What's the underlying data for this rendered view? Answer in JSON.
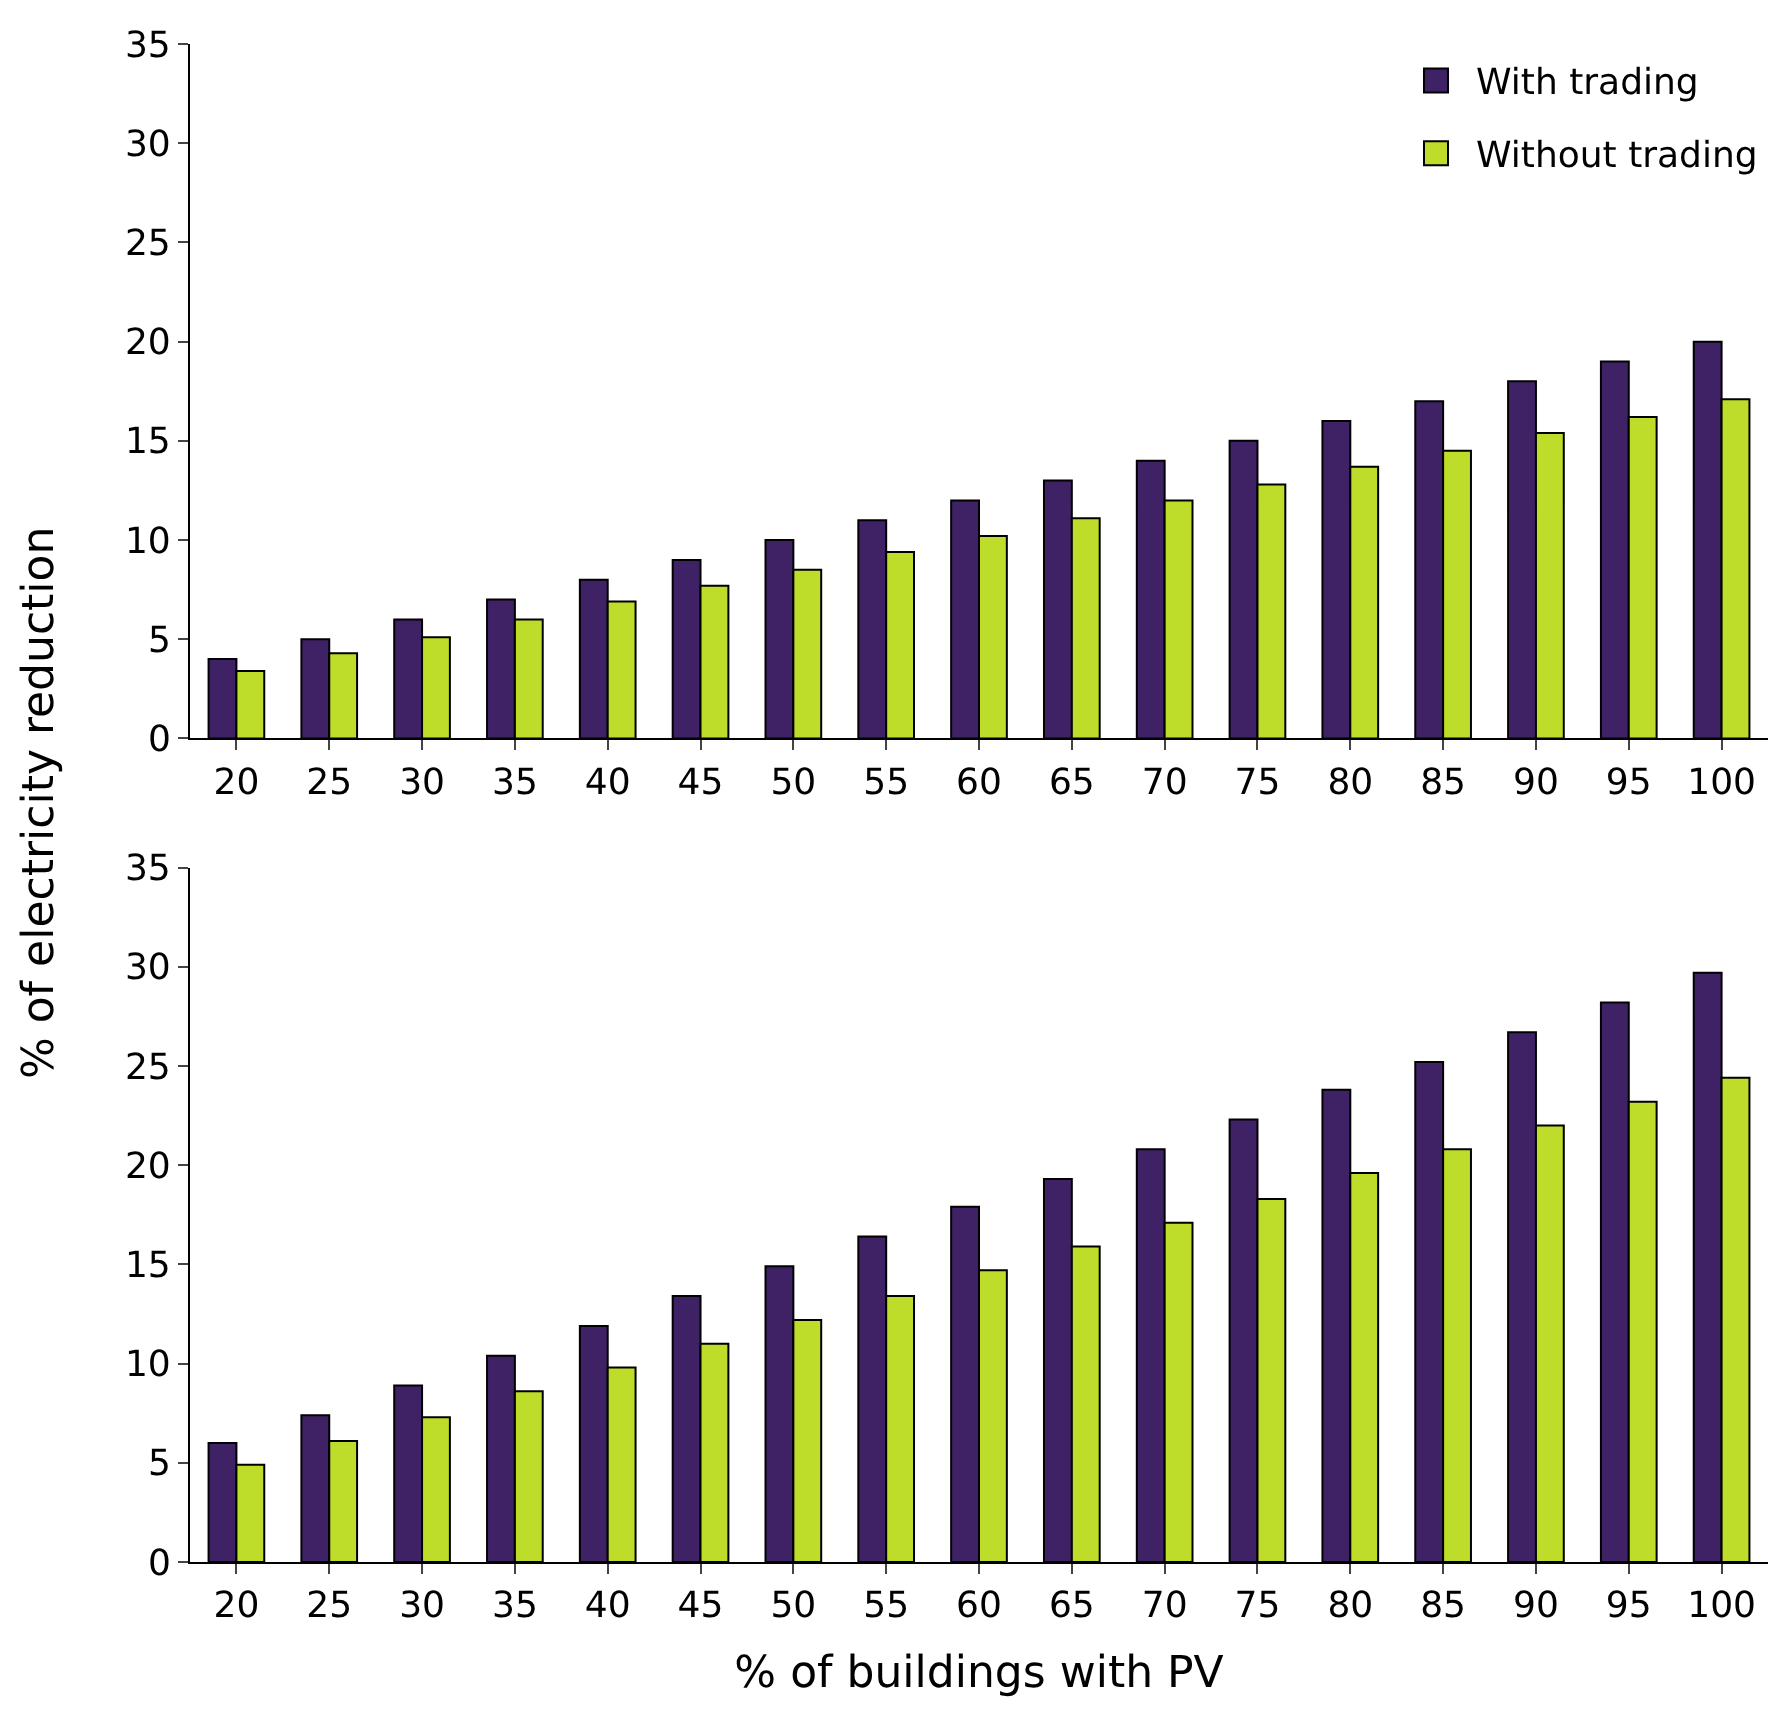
{
  "chart_data": [
    {
      "type": "bar",
      "ylabel": "% of electricity reduction",
      "categories": [
        "20",
        "25",
        "30",
        "35",
        "40",
        "45",
        "50",
        "55",
        "60",
        "65",
        "70",
        "75",
        "80",
        "85",
        "90",
        "95",
        "100"
      ],
      "series": [
        {
          "name": "With trading",
          "color": "#3f2166",
          "values": [
            4,
            5,
            6,
            7,
            8,
            9,
            10,
            11,
            12,
            13,
            14,
            15,
            16,
            17,
            18,
            19,
            20
          ]
        },
        {
          "name": "Without trading",
          "color": "#bedd2b",
          "values": [
            3.4,
            4.3,
            5.1,
            6.0,
            6.9,
            7.7,
            8.5,
            9.4,
            10.2,
            11.1,
            12.0,
            12.8,
            13.7,
            14.5,
            15.4,
            16.2,
            17.1
          ]
        }
      ],
      "ylim": [
        0,
        35
      ],
      "yticks": [
        0,
        5,
        10,
        15,
        20,
        25,
        30,
        35
      ],
      "legend": "top right"
    },
    {
      "type": "bar",
      "xlabel": "% of buildings with PV",
      "categories": [
        "20",
        "25",
        "30",
        "35",
        "40",
        "45",
        "50",
        "55",
        "60",
        "65",
        "70",
        "75",
        "80",
        "85",
        "90",
        "95",
        "100"
      ],
      "series": [
        {
          "color": "#3f2166",
          "values": [
            6.0,
            7.4,
            8.9,
            10.4,
            11.9,
            13.4,
            14.9,
            16.4,
            17.9,
            19.3,
            20.8,
            22.3,
            23.8,
            25.2,
            26.7,
            28.2,
            29.7
          ]
        },
        {
          "color": "#bedd2b",
          "values": [
            4.9,
            6.1,
            7.3,
            8.6,
            9.8,
            11.0,
            12.2,
            13.4,
            14.7,
            15.9,
            17.1,
            18.3,
            19.6,
            20.8,
            22.0,
            23.2,
            24.4
          ]
        }
      ],
      "ylim": [
        0,
        35
      ],
      "yticks": [
        0,
        5,
        10,
        15,
        20,
        25,
        30,
        35
      ]
    }
  ]
}
